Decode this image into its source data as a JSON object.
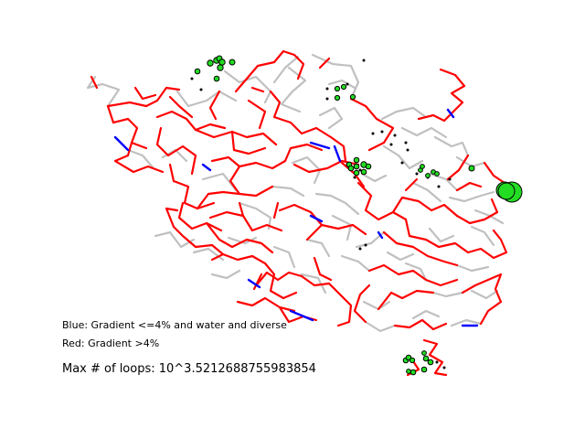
{
  "legend": {
    "blue": "Blue: Gradient <=4% and water and diverse",
    "red": "Red: Gradient >4%"
  },
  "loops_text": "Max # of loops: 10^3.5212688755983854",
  "colors": {
    "background": "#ffffff",
    "red_edge": "#ff0000",
    "blue_edge": "#0000ff",
    "gray_edge": "#c0c0c0",
    "node_fill": "#22dd22",
    "node_stroke": "#000000",
    "small_node": "#000000"
  }
}
